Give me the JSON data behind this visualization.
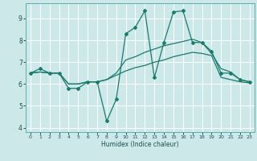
{
  "xlabel": "Humidex (Indice chaleur)",
  "ylabel": "",
  "bg_color": "#cce8e8",
  "grid_color": "#ffffff",
  "line_color": "#1a7a6e",
  "xlim": [
    -0.5,
    23.5
  ],
  "ylim": [
    3.8,
    9.7
  ],
  "yticks": [
    4,
    5,
    6,
    7,
    8,
    9
  ],
  "xticks": [
    0,
    1,
    2,
    3,
    4,
    5,
    6,
    7,
    8,
    9,
    10,
    11,
    12,
    13,
    14,
    15,
    16,
    17,
    18,
    19,
    20,
    21,
    22,
    23
  ],
  "line1_x": [
    0,
    1,
    2,
    3,
    4,
    5,
    6,
    7,
    8,
    9,
    10,
    11,
    12,
    13,
    14,
    15,
    16,
    17,
    18,
    19,
    20,
    21,
    22,
    23
  ],
  "line1_y": [
    6.5,
    6.7,
    6.5,
    6.5,
    5.8,
    5.8,
    6.1,
    6.1,
    4.3,
    5.3,
    8.3,
    8.6,
    9.35,
    6.3,
    7.9,
    9.3,
    9.35,
    7.9,
    7.9,
    7.5,
    6.5,
    6.5,
    6.2,
    6.1
  ],
  "line2_x": [
    0,
    1,
    2,
    3,
    4,
    5,
    6,
    7,
    8,
    9,
    10,
    11,
    12,
    13,
    14,
    15,
    16,
    17,
    18,
    19,
    20,
    21,
    22,
    23
  ],
  "line2_y": [
    6.5,
    6.55,
    6.5,
    6.5,
    6.0,
    6.0,
    6.1,
    6.1,
    6.2,
    6.5,
    7.1,
    7.25,
    7.45,
    7.6,
    7.75,
    7.85,
    7.95,
    8.05,
    7.9,
    7.4,
    6.7,
    6.55,
    6.2,
    6.1
  ],
  "line3_x": [
    0,
    1,
    2,
    3,
    4,
    5,
    6,
    7,
    8,
    9,
    10,
    11,
    12,
    13,
    14,
    15,
    16,
    17,
    18,
    19,
    20,
    21,
    22,
    23
  ],
  "line3_y": [
    6.5,
    6.55,
    6.5,
    6.5,
    6.0,
    6.0,
    6.1,
    6.1,
    6.2,
    6.4,
    6.6,
    6.75,
    6.85,
    7.0,
    7.1,
    7.25,
    7.35,
    7.45,
    7.4,
    7.3,
    6.3,
    6.2,
    6.1,
    6.05
  ]
}
